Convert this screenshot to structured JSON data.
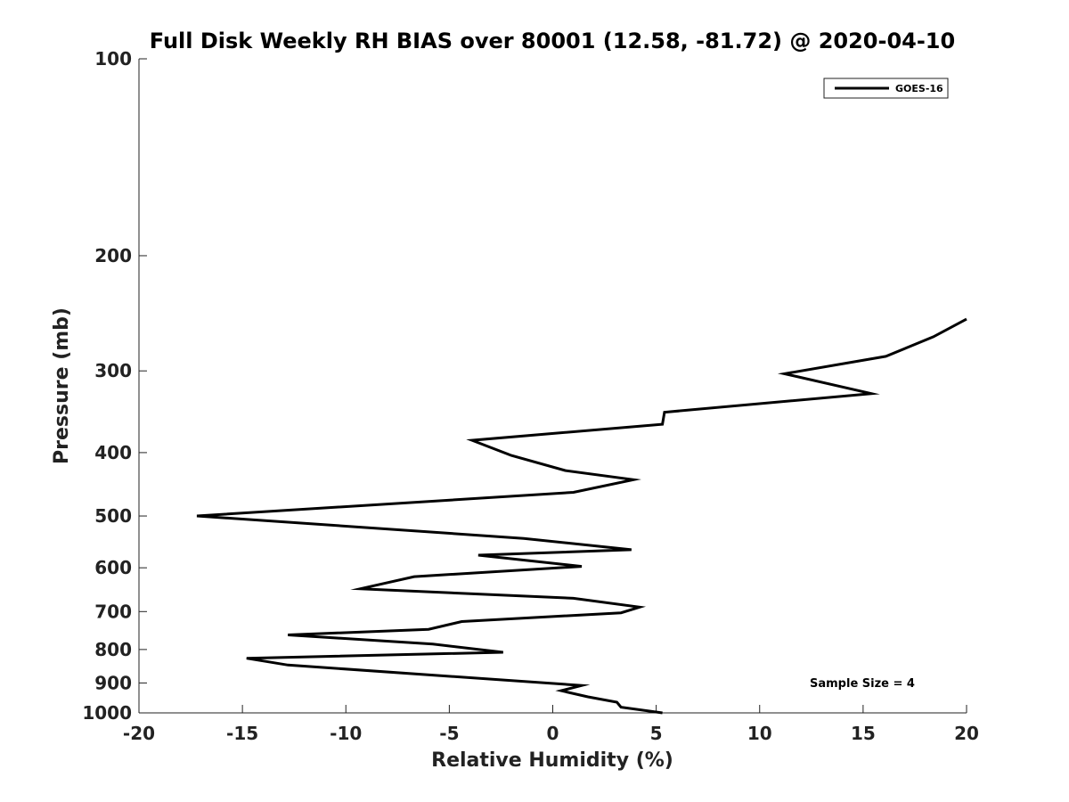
{
  "chart_data": {
    "type": "line",
    "title": "Full Disk Weekly RH BIAS over 80001 (12.58, -81.72) @ 2020-04-10",
    "xlabel": "Relative Humidity (%)",
    "ylabel": "Pressure (mb)",
    "xlim": [
      -20,
      20
    ],
    "ylim": [
      1000,
      100
    ],
    "yscale": "log",
    "y_reversed": true,
    "grid": false,
    "legend_position": "top-right",
    "x_ticks": [
      -20,
      -15,
      -10,
      -5,
      0,
      5,
      10,
      15,
      20
    ],
    "x_tick_labels": [
      "-20",
      "-15",
      "-10",
      "-5",
      "0",
      "5",
      "10",
      "15",
      "20"
    ],
    "y_ticks": [
      100,
      200,
      300,
      400,
      500,
      600,
      700,
      800,
      900,
      1000
    ],
    "y_tick_labels": [
      "100",
      "200",
      "300",
      "400",
      "500",
      "600",
      "700",
      "800",
      "900",
      "1000"
    ],
    "annotation": "Sample Size = 4",
    "series": [
      {
        "name": "GOES-16",
        "color": "#000000",
        "points": [
          [
            20.0,
            250
          ],
          [
            18.4,
            266
          ],
          [
            16.1,
            285
          ],
          [
            11.2,
            303
          ],
          [
            15.4,
            325
          ],
          [
            5.4,
            347
          ],
          [
            5.3,
            362
          ],
          [
            -3.9,
            383
          ],
          [
            -2.0,
            404
          ],
          [
            0.6,
            426
          ],
          [
            3.9,
            440
          ],
          [
            1.0,
            460
          ],
          [
            -17.2,
            500
          ],
          [
            -1.4,
            541
          ],
          [
            3.8,
            563
          ],
          [
            -3.6,
            574
          ],
          [
            1.4,
            597
          ],
          [
            -6.7,
            619
          ],
          [
            -9.3,
            646
          ],
          [
            1.0,
            668
          ],
          [
            4.2,
            689
          ],
          [
            3.3,
            703
          ],
          [
            -4.4,
            725
          ],
          [
            -6.0,
            745
          ],
          [
            -12.8,
            760
          ],
          [
            -5.8,
            785
          ],
          [
            -2.4,
            808
          ],
          [
            -14.8,
            825
          ],
          [
            -12.8,
            845
          ],
          [
            1.4,
            908
          ],
          [
            0.4,
            925
          ],
          [
            1.7,
            945
          ],
          [
            3.1,
            963
          ],
          [
            3.3,
            980
          ],
          [
            5.3,
            1000
          ]
        ]
      }
    ]
  }
}
